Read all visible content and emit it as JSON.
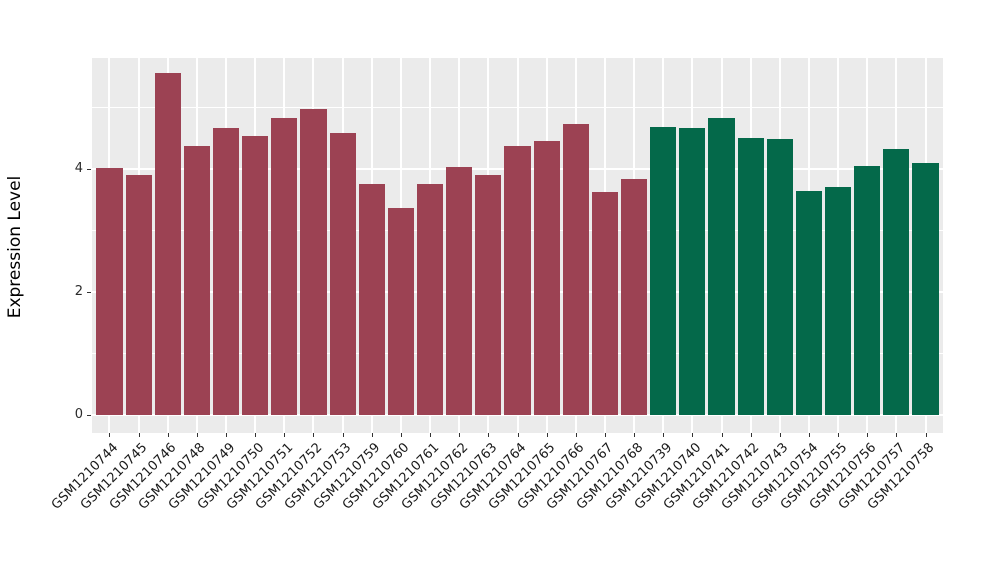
{
  "figure": {
    "background": "#FFFFFF",
    "panel_background": "#EBEBEB",
    "grid_color": "#FFFFFF",
    "axis_tick_color": "#333333"
  },
  "chart_data": {
    "type": "bar",
    "title": "",
    "xlabel": "",
    "ylabel": "Expression Level",
    "ylim": [
      0,
      5.8
    ],
    "yticks_major": [
      0,
      2,
      4
    ],
    "yticks_minor": [
      1,
      3,
      5
    ],
    "grid": true,
    "legend": "none",
    "group_colors": {
      "maroon": "#9C4253",
      "green": "#04694A"
    },
    "categories": [
      "GSM1210744",
      "GSM1210745",
      "GSM1210746",
      "GSM1210748",
      "GSM1210749",
      "GSM1210750",
      "GSM1210751",
      "GSM1210752",
      "GSM1210753",
      "GSM1210759",
      "GSM1210760",
      "GSM1210761",
      "GSM1210762",
      "GSM1210763",
      "GSM1210764",
      "GSM1210765",
      "GSM1210766",
      "GSM1210767",
      "GSM1210768",
      "GSM1210739",
      "GSM1210740",
      "GSM1210741",
      "GSM1210742",
      "GSM1210743",
      "GSM1210754",
      "GSM1210755",
      "GSM1210756",
      "GSM1210757",
      "GSM1210758"
    ],
    "values": [
      4.02,
      3.9,
      5.56,
      4.37,
      4.66,
      4.53,
      4.83,
      4.98,
      4.58,
      3.76,
      3.37,
      3.75,
      4.04,
      3.9,
      4.37,
      4.46,
      4.73,
      3.63,
      3.84,
      4.69,
      4.66,
      4.83,
      4.51,
      4.49,
      3.65,
      3.7,
      4.05,
      4.33,
      4.09
    ],
    "groups": [
      "maroon",
      "maroon",
      "maroon",
      "maroon",
      "maroon",
      "maroon",
      "maroon",
      "maroon",
      "maroon",
      "maroon",
      "maroon",
      "maroon",
      "maroon",
      "maroon",
      "maroon",
      "maroon",
      "maroon",
      "maroon",
      "maroon",
      "green",
      "green",
      "green",
      "green",
      "green",
      "green",
      "green",
      "green",
      "green",
      "green"
    ]
  }
}
